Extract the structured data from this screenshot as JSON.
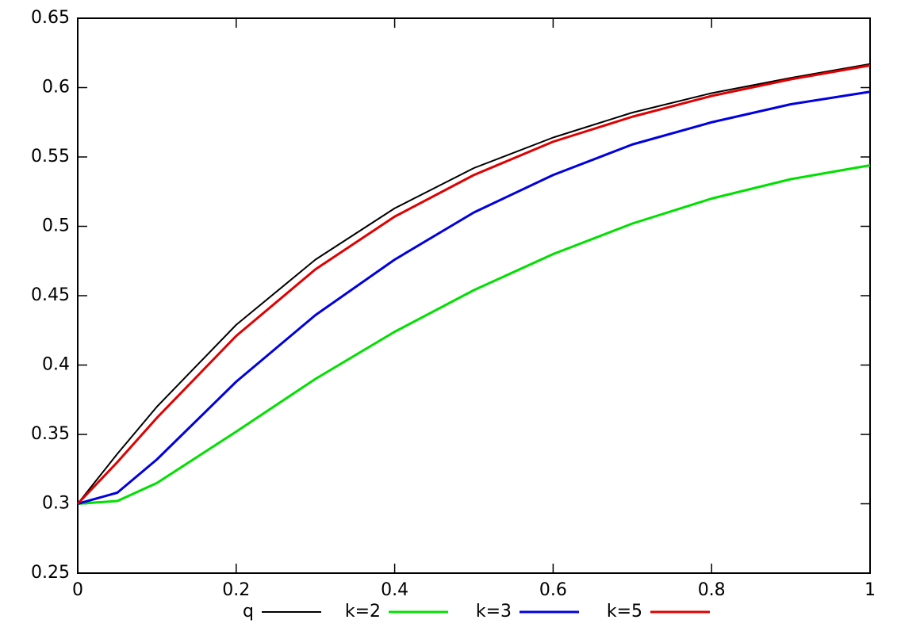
{
  "chart_data": {
    "type": "line",
    "x": [
      0,
      0.05,
      0.1,
      0.2,
      0.3,
      0.4,
      0.5,
      0.6,
      0.7,
      0.8,
      0.9,
      1
    ],
    "series": [
      {
        "name": "q",
        "color": "#000000",
        "values": [
          0.3,
          0.336,
          0.37,
          0.429,
          0.476,
          0.513,
          0.542,
          0.564,
          0.582,
          0.596,
          0.607,
          0.617
        ]
      },
      {
        "name": "k=2",
        "color": "#00e000",
        "values": [
          0.3,
          0.302,
          0.315,
          0.352,
          0.39,
          0.424,
          0.454,
          0.48,
          0.502,
          0.52,
          0.534,
          0.544
        ]
      },
      {
        "name": "k=3",
        "color": "#0000e0",
        "values": [
          0.3,
          0.308,
          0.332,
          0.388,
          0.436,
          0.476,
          0.51,
          0.537,
          0.559,
          0.575,
          0.588,
          0.597
        ]
      },
      {
        "name": "k=5",
        "color": "#e00000",
        "values": [
          0.3,
          0.33,
          0.362,
          0.421,
          0.469,
          0.507,
          0.537,
          0.561,
          0.579,
          0.594,
          0.606,
          0.616
        ]
      }
    ],
    "xlim": [
      0,
      1
    ],
    "xticks": [
      0,
      0.2,
      0.4,
      0.6,
      0.8,
      1
    ],
    "ylim": [
      0.25,
      0.65
    ],
    "yticks": [
      0.25,
      0.3,
      0.35,
      0.4,
      0.45,
      0.5,
      0.55,
      0.6,
      0.65
    ]
  }
}
